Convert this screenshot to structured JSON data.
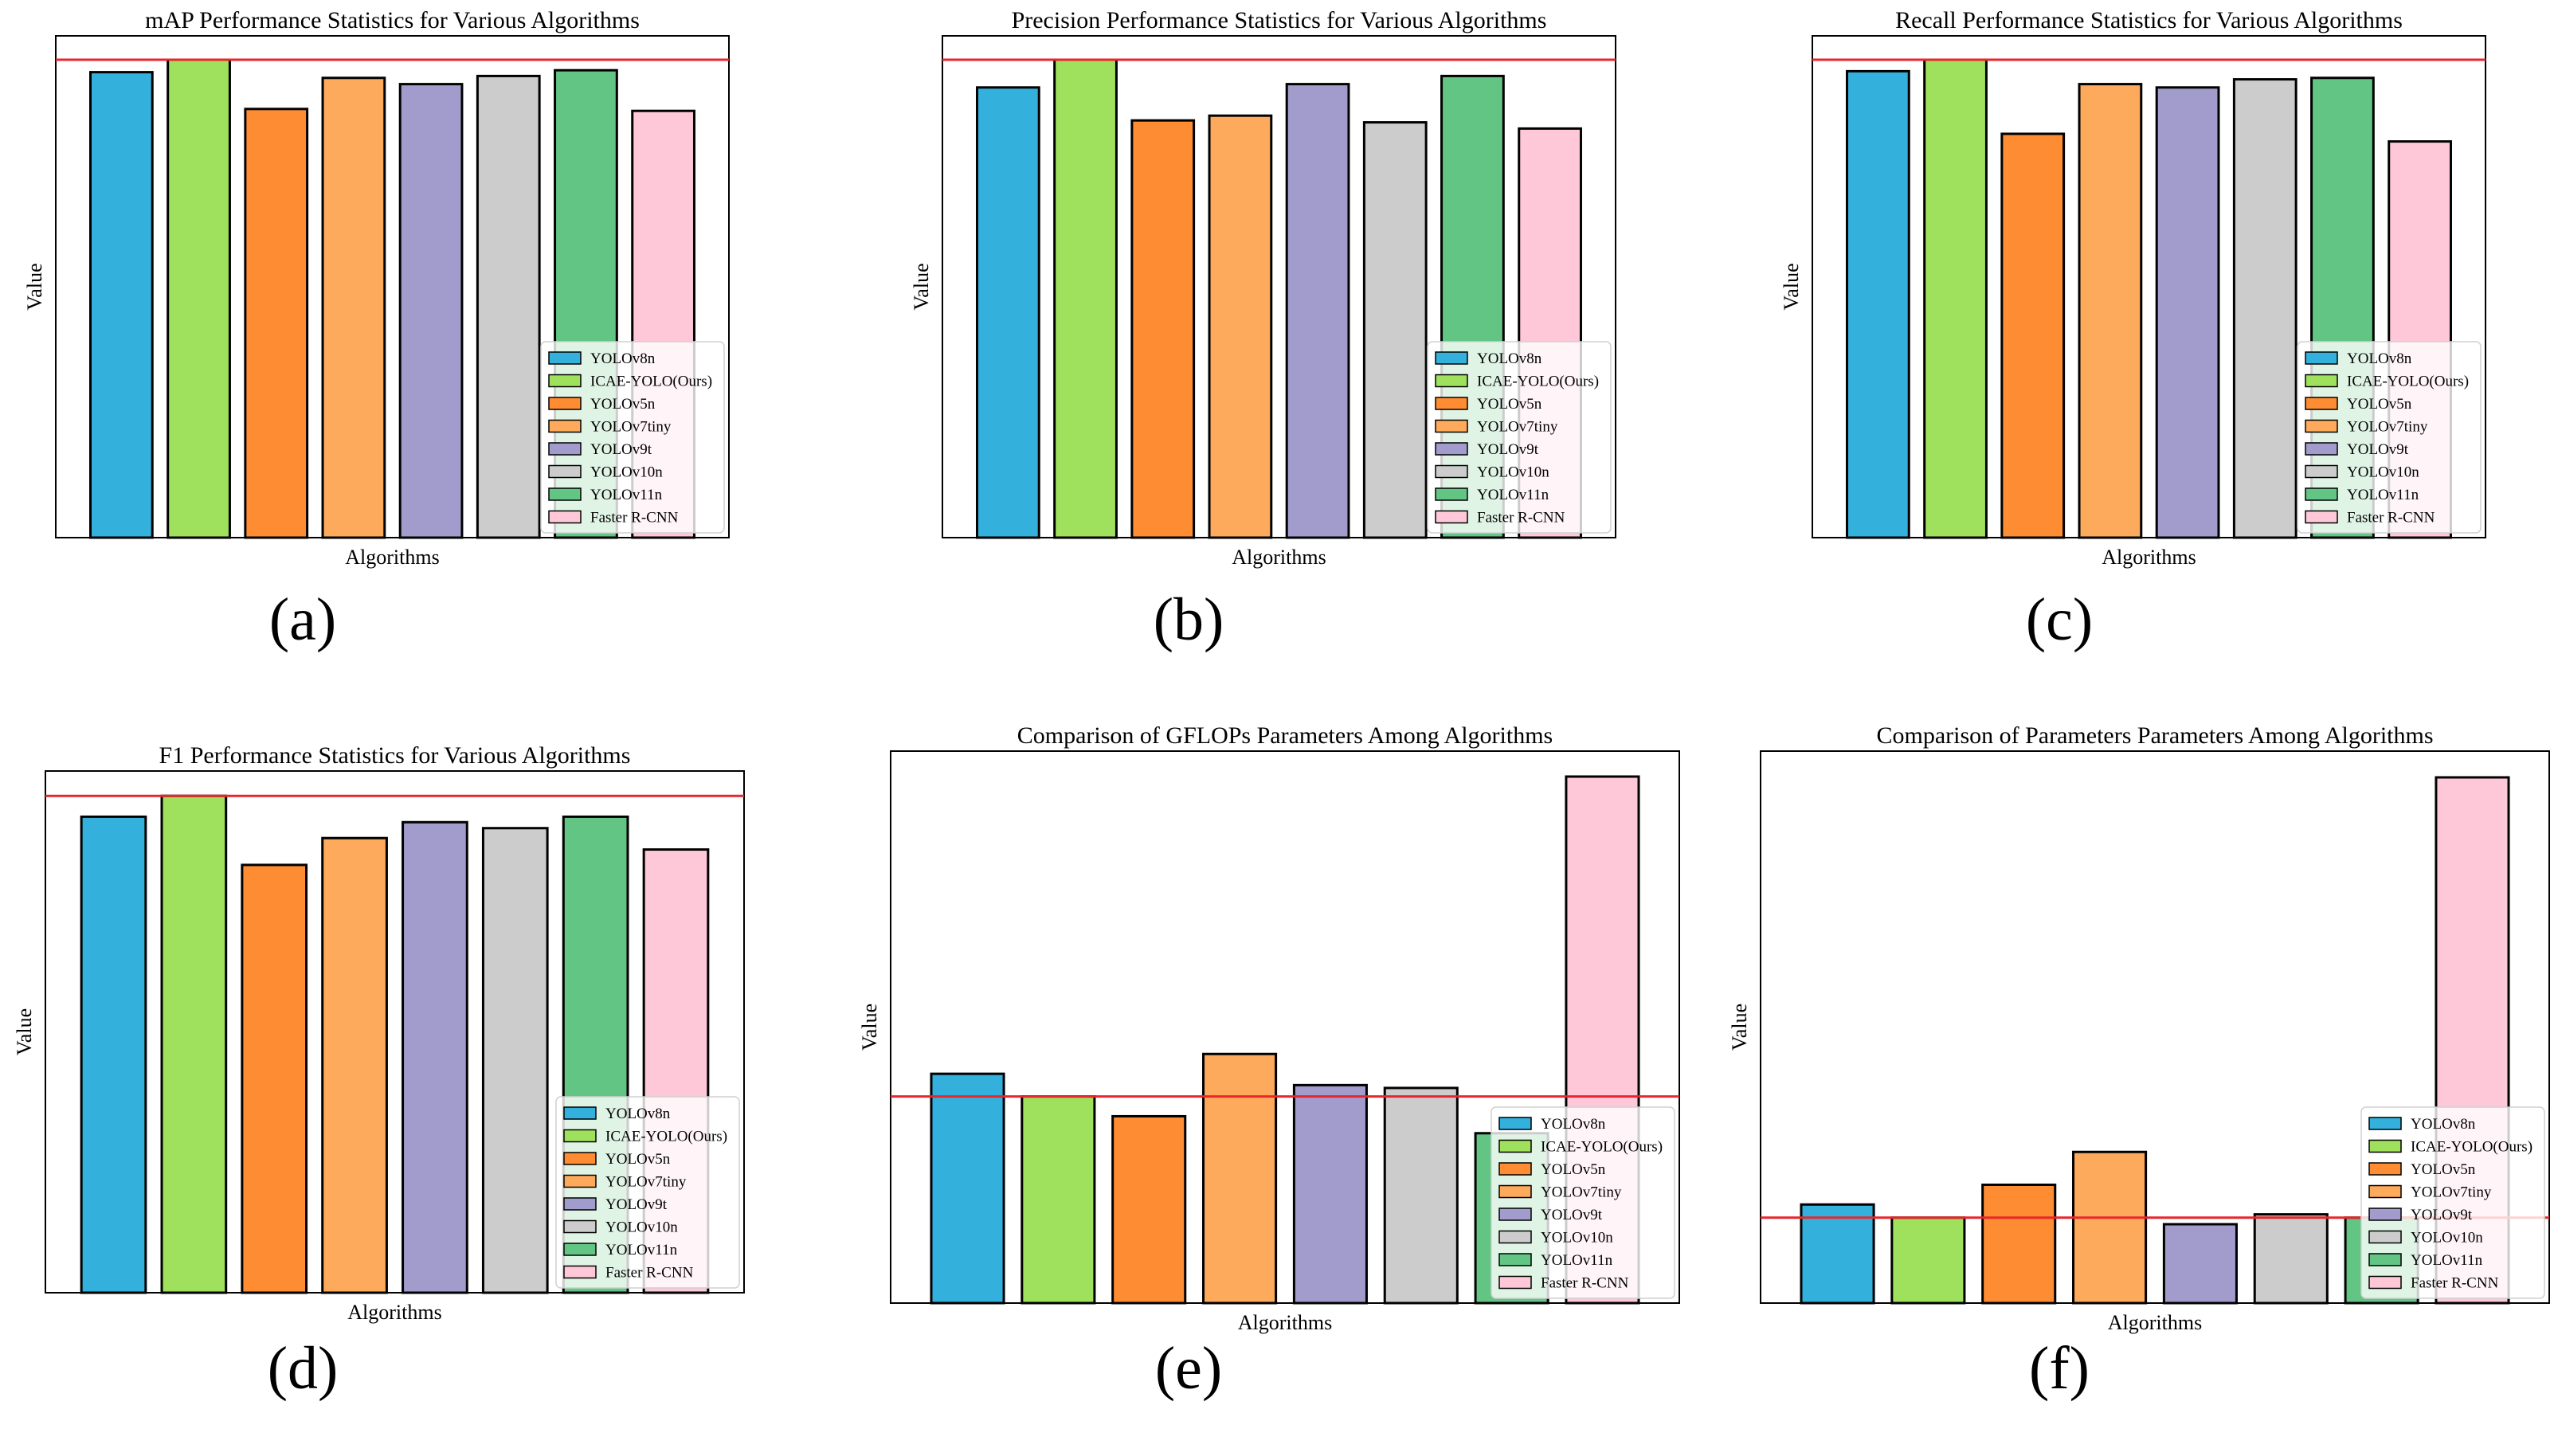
{
  "colors": [
    "#33b0db",
    "#9fe05c",
    "#fe8c33",
    "#feaa5c",
    "#a19ccc",
    "#cccccc",
    "#63c584",
    "#fec8d8"
  ],
  "chart_data": [
    {
      "type": "bar",
      "caption": "(a)",
      "title": "mAP Performance Statistics for Various Algorithms",
      "xlabel": "Algorithms",
      "ylabel": "Value",
      "categories": [
        "YOLOv8n",
        "ICAE-YOLO(Ours)",
        "YOLOv5n",
        "YOLOv7tiny",
        "YOLOv9t",
        "YOLOv10n",
        "YOLOv11n",
        "Faster R-CNN"
      ],
      "values": [
        0.974,
        1.0,
        0.897,
        0.962,
        0.949,
        0.966,
        0.978,
        0.893
      ],
      "ylim": [
        0,
        1.05
      ],
      "reference_line": 1.0,
      "legend": "lower-right"
    },
    {
      "type": "bar",
      "caption": "(b)",
      "title": "Precision Performance Statistics for Various Algorithms",
      "xlabel": "Algorithms",
      "ylabel": "Value",
      "categories": [
        "YOLOv8n",
        "ICAE-YOLO(Ours)",
        "YOLOv5n",
        "YOLOv7tiny",
        "YOLOv9t",
        "YOLOv10n",
        "YOLOv11n",
        "Faster R-CNN"
      ],
      "values": [
        0.942,
        1.0,
        0.873,
        0.883,
        0.949,
        0.869,
        0.966,
        0.856
      ],
      "ylim": [
        0,
        1.05
      ],
      "reference_line": 1.0,
      "legend": "lower-right"
    },
    {
      "type": "bar",
      "caption": "(c)",
      "title": "Recall Performance Statistics for Various Algorithms",
      "xlabel": "Algorithms",
      "ylabel": "Value",
      "categories": [
        "YOLOv8n",
        "ICAE-YOLO(Ours)",
        "YOLOv5n",
        "YOLOv7tiny",
        "YOLOv9t",
        "YOLOv10n",
        "YOLOv11n",
        "Faster R-CNN"
      ],
      "values": [
        0.976,
        1.0,
        0.845,
        0.949,
        0.942,
        0.959,
        0.962,
        0.829
      ],
      "ylim": [
        0,
        1.05
      ],
      "reference_line": 1.0,
      "legend": "lower-right"
    },
    {
      "type": "bar",
      "caption": "(d)",
      "title": "F1 Performance Statistics for Various Algorithms",
      "xlabel": "Algorithms",
      "ylabel": "Value",
      "categories": [
        "YOLOv8n",
        "ICAE-YOLO(Ours)",
        "YOLOv5n",
        "YOLOv7tiny",
        "YOLOv9t",
        "YOLOv10n",
        "YOLOv11n",
        "Faster R-CNN"
      ],
      "values": [
        0.958,
        1.0,
        0.861,
        0.915,
        0.947,
        0.935,
        0.958,
        0.892
      ],
      "ylim": [
        0,
        1.05
      ],
      "reference_line": 1.0,
      "legend": "lower-right"
    },
    {
      "type": "bar",
      "caption": "(e)",
      "title": "Comparison of GFLOPs Parameters Among Algorithms",
      "xlabel": "Algorithms",
      "ylabel": "Value",
      "categories": [
        "YOLOv8n",
        "ICAE-YOLO(Ours)",
        "YOLOv5n",
        "YOLOv7tiny",
        "YOLOv9t",
        "YOLOv10n",
        "YOLOv11n",
        "Faster R-CNN"
      ],
      "values": [
        8.1,
        7.3,
        6.6,
        8.8,
        7.7,
        7.6,
        6.0,
        18.6
      ],
      "ylim": [
        0,
        19.5
      ],
      "reference_line": 7.3,
      "legend": "lower-right"
    },
    {
      "type": "bar",
      "caption": "(f)",
      "title": "Comparison of Parameters Parameters Among Algorithms",
      "xlabel": "Algorithms",
      "ylabel": "Value",
      "categories": [
        "YOLOv8n",
        "ICAE-YOLO(Ours)",
        "YOLOv5n",
        "YOLOv7tiny",
        "YOLOv9t",
        "YOLOv10n",
        "YOLOv11n",
        "Faster R-CNN"
      ],
      "values": [
        3.0,
        2.6,
        3.6,
        4.6,
        2.4,
        2.7,
        2.6,
        16.0
      ],
      "ylim": [
        0,
        16.8
      ],
      "reference_line": 2.6,
      "legend": "lower-right"
    }
  ]
}
